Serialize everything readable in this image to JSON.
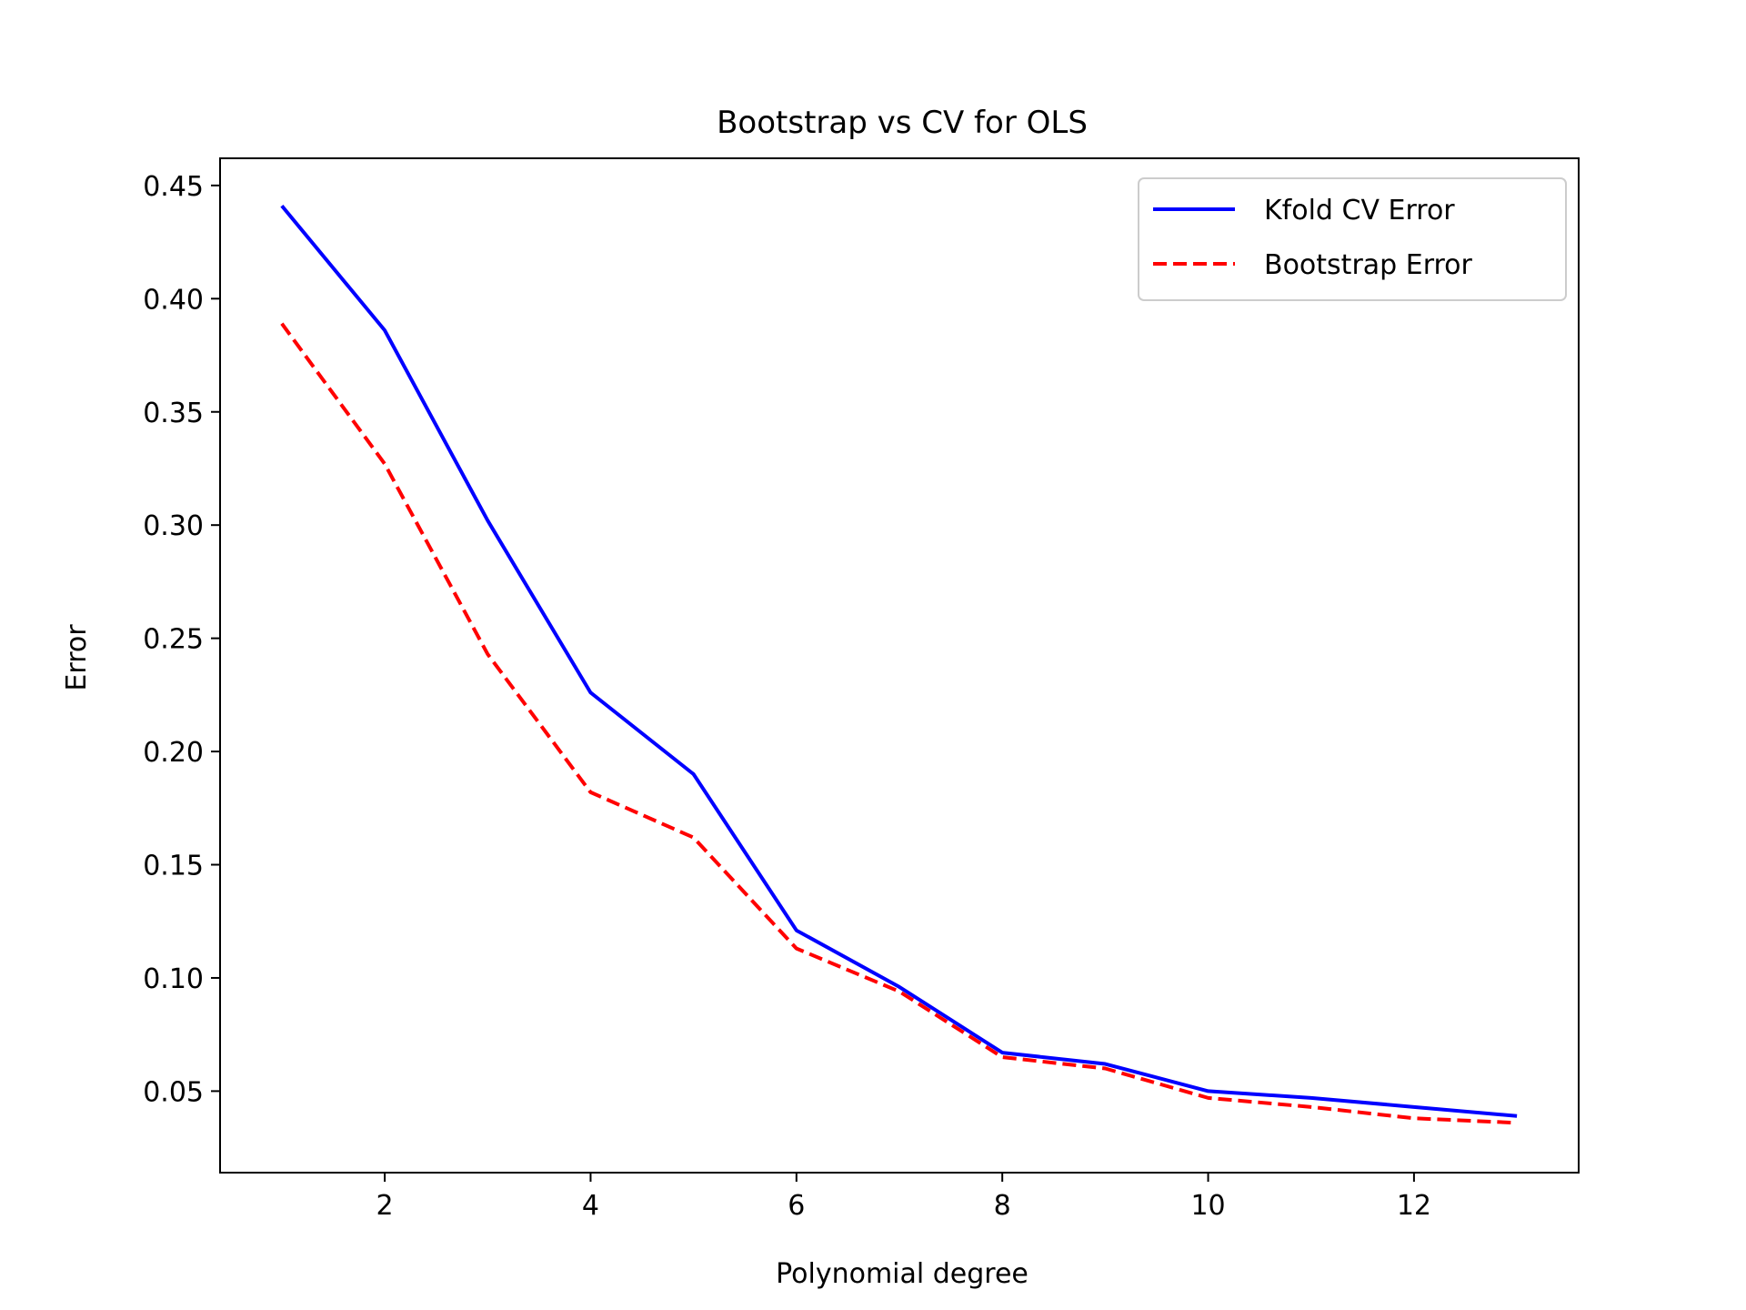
{
  "chart_data": {
    "type": "line",
    "title": "Bootstrap vs CV for OLS",
    "xlabel": "Polynomial degree",
    "ylabel": "Error",
    "xlim": [
      0.4,
      13.6
    ],
    "ylim": [
      0.014,
      0.462
    ],
    "xticks": [
      2,
      4,
      6,
      8,
      10,
      12
    ],
    "xtick_labels": [
      "2",
      "4",
      "6",
      "8",
      "10",
      "12"
    ],
    "yticks": [
      0.05,
      0.1,
      0.15,
      0.2,
      0.25,
      0.3,
      0.35,
      0.4,
      0.45
    ],
    "ytick_labels": [
      "0.05",
      "0.10",
      "0.15",
      "0.20",
      "0.25",
      "0.30",
      "0.35",
      "0.40",
      "0.45"
    ],
    "grid": false,
    "legend_position": "top-right",
    "x": [
      1,
      2,
      3,
      4,
      5,
      6,
      7,
      8,
      9,
      10,
      11,
      12,
      13
    ],
    "series": [
      {
        "name": "Kfold CV Error",
        "color": "#0000ff",
        "style": "solid",
        "values": [
          0.441,
          0.386,
          0.302,
          0.226,
          0.19,
          0.121,
          0.096,
          0.067,
          0.062,
          0.05,
          0.047,
          0.043,
          0.039
        ]
      },
      {
        "name": "Bootstrap Error",
        "color": "#ff0000",
        "style": "dashed",
        "values": [
          0.389,
          0.327,
          0.243,
          0.182,
          0.162,
          0.113,
          0.094,
          0.065,
          0.06,
          0.047,
          0.043,
          0.038,
          0.036
        ]
      }
    ]
  }
}
